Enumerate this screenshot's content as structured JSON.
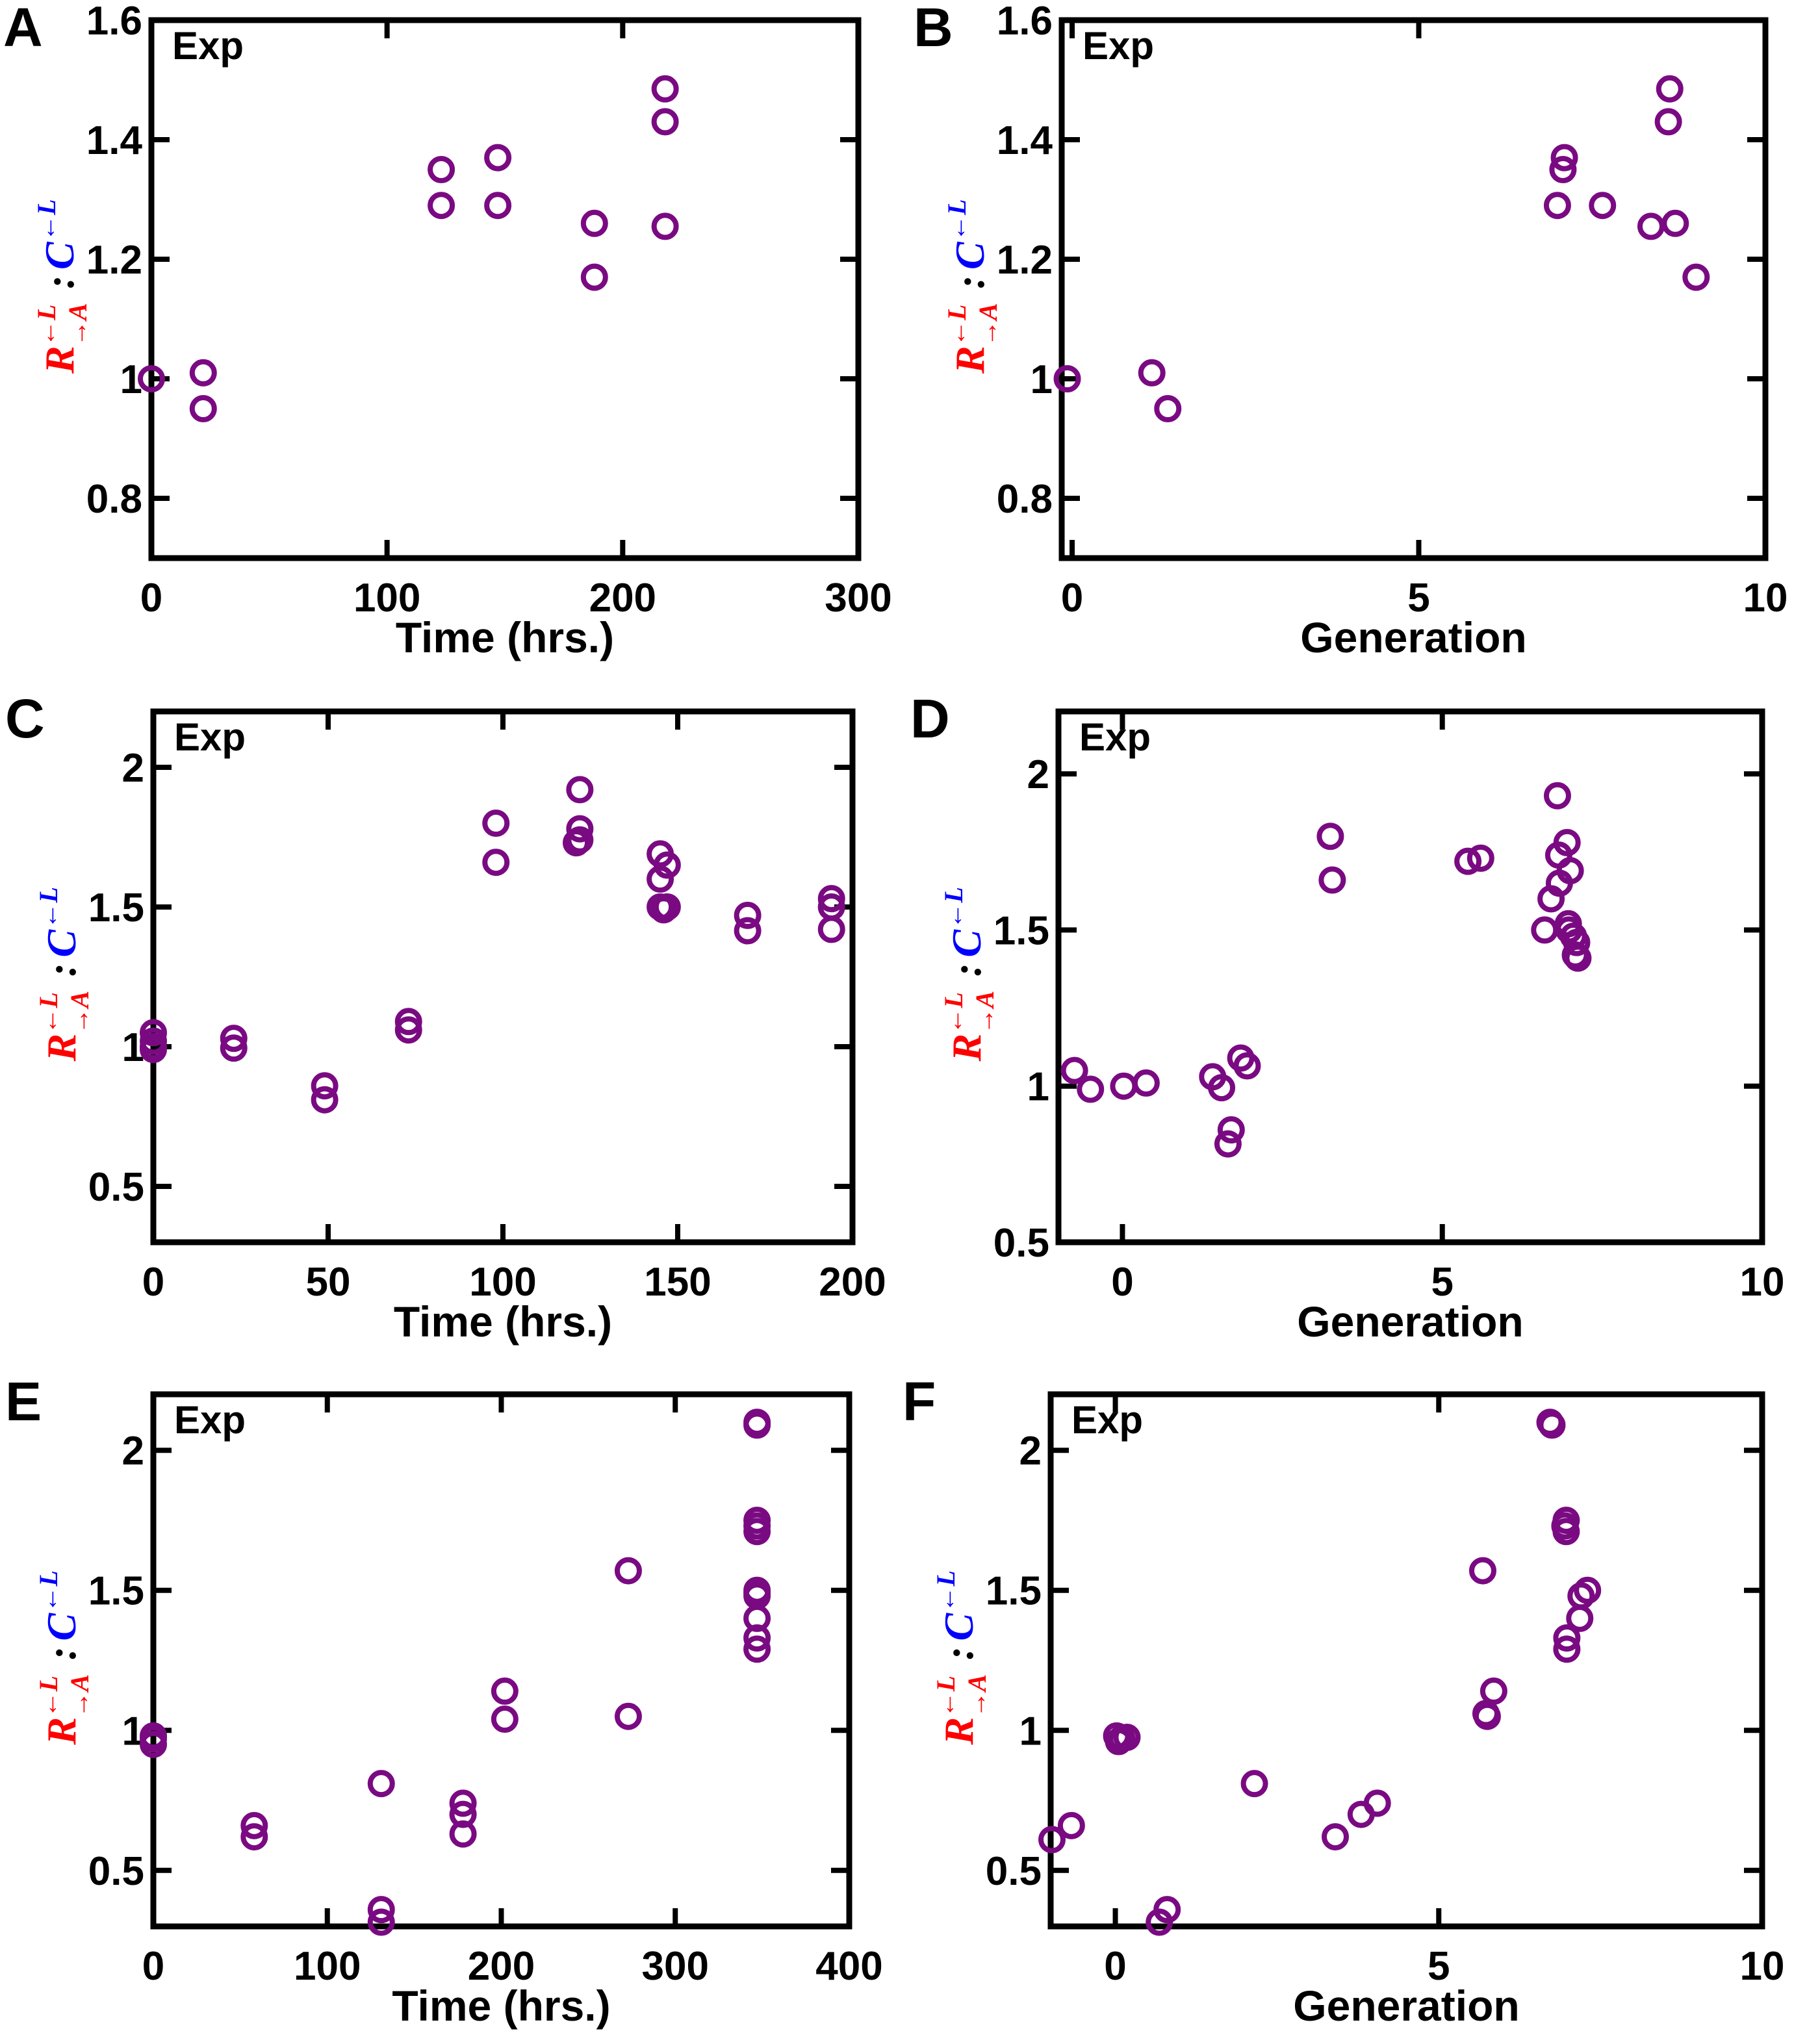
{
  "figure": {
    "marker_color": "#7a0a82",
    "ylabel": {
      "r_text": "R",
      "r_sup": "←L",
      "r_sub": "→A",
      "separator": ":",
      "c_text": "C",
      "c_sup": "←L",
      "r_color": "#ff0000",
      "c_color": "#0000ff",
      "sep_color": "#000000"
    }
  },
  "chart_data": [
    {
      "panel": "A",
      "type": "scatter",
      "annotation": "Exp",
      "xlabel": "Time (hrs.)",
      "ylabel": "R(←L)(→A) : C(←L)",
      "xlim": [
        0,
        300
      ],
      "ylim": [
        0.7,
        1.6
      ],
      "xticks": [
        0,
        100,
        200,
        300
      ],
      "xtick_labels": [
        "0",
        "100",
        "200",
        "300"
      ],
      "yticks": [
        0.8,
        1.0,
        1.2,
        1.4,
        1.6
      ],
      "ytick_labels": [
        "0.8",
        "1",
        "1.2",
        "1.4",
        "1.6"
      ],
      "grid": false,
      "marker": "open-circle",
      "points": [
        [
          0,
          1.0
        ],
        [
          22,
          1.01
        ],
        [
          22,
          0.95
        ],
        [
          123,
          1.35
        ],
        [
          123,
          1.29
        ],
        [
          147,
          1.37
        ],
        [
          147,
          1.29
        ],
        [
          188,
          1.26
        ],
        [
          188,
          1.17
        ],
        [
          218,
          1.485
        ],
        [
          218,
          1.43
        ],
        [
          218,
          1.255
        ]
      ]
    },
    {
      "panel": "B",
      "type": "scatter",
      "annotation": "Exp",
      "xlabel": "Generation",
      "ylabel": "R(←L)(→A) : C(←L)",
      "xlim": [
        -0.15,
        10
      ],
      "ylim": [
        0.7,
        1.6
      ],
      "xticks": [
        0,
        5,
        10
      ],
      "xtick_labels": [
        "0",
        "5",
        "10"
      ],
      "yticks": [
        0.8,
        1.0,
        1.2,
        1.4,
        1.6
      ],
      "ytick_labels": [
        "0.8",
        "1",
        "1.2",
        "1.4",
        "1.6"
      ],
      "grid": false,
      "marker": "open-circle",
      "points": [
        [
          -0.07,
          1.0
        ],
        [
          1.15,
          1.01
        ],
        [
          1.38,
          0.95
        ],
        [
          7.0,
          1.29
        ],
        [
          7.1,
          1.37
        ],
        [
          7.08,
          1.35
        ],
        [
          7.65,
          1.29
        ],
        [
          8.35,
          1.255
        ],
        [
          8.7,
          1.26
        ],
        [
          8.6,
          1.43
        ],
        [
          8.62,
          1.485
        ],
        [
          9.0,
          1.17
        ]
      ]
    },
    {
      "panel": "C",
      "type": "scatter",
      "annotation": "Exp",
      "xlabel": "Time (hrs.)",
      "ylabel": "R(←L)(→A) : C(←L)",
      "xlim": [
        0,
        200
      ],
      "ylim": [
        0.3,
        2.2
      ],
      "xticks": [
        0,
        50,
        100,
        150,
        200
      ],
      "xtick_labels": [
        "0",
        "50",
        "100",
        "150",
        "200"
      ],
      "yticks": [
        0.5,
        1.0,
        1.5,
        2.0
      ],
      "ytick_labels": [
        "0.5",
        "1",
        "1.5",
        "2"
      ],
      "grid": false,
      "marker": "open-circle",
      "points": [
        [
          0,
          1.05
        ],
        [
          0,
          1.02
        ],
        [
          0,
          1.0
        ],
        [
          0,
          0.99
        ],
        [
          23,
          1.03
        ],
        [
          23,
          0.995
        ],
        [
          49,
          0.86
        ],
        [
          49,
          0.81
        ],
        [
          73,
          1.09
        ],
        [
          73,
          1.06
        ],
        [
          98,
          1.8
        ],
        [
          98,
          1.66
        ],
        [
          122,
          1.92
        ],
        [
          122,
          1.78
        ],
        [
          122,
          1.74
        ],
        [
          121,
          1.73
        ],
        [
          145,
          1.69
        ],
        [
          145,
          1.6
        ],
        [
          145,
          1.5
        ],
        [
          146,
          1.49
        ],
        [
          147,
          1.65
        ],
        [
          147,
          1.5
        ],
        [
          170,
          1.47
        ],
        [
          170,
          1.415
        ],
        [
          194,
          1.53
        ],
        [
          194,
          1.5
        ],
        [
          194,
          1.42
        ]
      ]
    },
    {
      "panel": "D",
      "type": "scatter",
      "annotation": "Exp",
      "xlabel": "Generation",
      "ylabel": "R(←L)(→A) : C(←L)",
      "xlim": [
        -1,
        10
      ],
      "ylim": [
        0.5,
        2.2
      ],
      "xticks": [
        0,
        5,
        10
      ],
      "xtick_labels": [
        "0",
        "5",
        "10"
      ],
      "yticks": [
        0.5,
        1.0,
        1.5,
        2.0
      ],
      "ytick_labels": [
        "0.5",
        "1",
        "1.5",
        "2"
      ],
      "grid": false,
      "marker": "open-circle",
      "points": [
        [
          -0.75,
          1.05
        ],
        [
          -0.5,
          0.99
        ],
        [
          0.02,
          1.0
        ],
        [
          0.37,
          1.01
        ],
        [
          1.41,
          1.03
        ],
        [
          1.55,
          0.995
        ],
        [
          1.85,
          1.09
        ],
        [
          1.95,
          1.065
        ],
        [
          1.7,
          0.86
        ],
        [
          1.65,
          0.815
        ],
        [
          3.25,
          1.8
        ],
        [
          3.28,
          1.66
        ],
        [
          5.4,
          1.72
        ],
        [
          5.6,
          1.73
        ],
        [
          6.8,
          1.93
        ],
        [
          6.95,
          1.78
        ],
        [
          6.82,
          1.74
        ],
        [
          7.0,
          1.69
        ],
        [
          6.83,
          1.65
        ],
        [
          6.7,
          1.6
        ],
        [
          6.6,
          1.5
        ],
        [
          6.97,
          1.52
        ],
        [
          6.98,
          1.5
        ],
        [
          7.05,
          1.48
        ],
        [
          7.1,
          1.46
        ],
        [
          7.08,
          1.42
        ],
        [
          7.12,
          1.41
        ]
      ]
    },
    {
      "panel": "E",
      "type": "scatter",
      "annotation": "Exp",
      "xlabel": "Time (hrs.)",
      "ylabel": "R(←L)(→A) : C(←L)",
      "xlim": [
        0,
        400
      ],
      "ylim": [
        0.3,
        2.2
      ],
      "xticks": [
        0,
        100,
        200,
        300,
        400
      ],
      "xtick_labels": [
        "0",
        "100",
        "200",
        "300",
        "400"
      ],
      "yticks": [
        0.5,
        1.0,
        1.5,
        2.0
      ],
      "ytick_labels": [
        "0.5",
        "1",
        "1.5",
        "2"
      ],
      "grid": false,
      "marker": "open-circle",
      "points": [
        [
          0,
          0.98
        ],
        [
          0,
          0.97
        ],
        [
          0,
          0.95
        ],
        [
          58,
          0.66
        ],
        [
          58,
          0.62
        ],
        [
          131,
          0.81
        ],
        [
          131,
          0.36
        ],
        [
          131,
          0.315
        ],
        [
          178,
          0.74
        ],
        [
          178,
          0.7
        ],
        [
          178,
          0.63
        ],
        [
          202,
          1.14
        ],
        [
          202,
          1.04
        ],
        [
          273,
          1.57
        ],
        [
          273,
          1.05
        ],
        [
          347,
          2.1
        ],
        [
          347,
          2.09
        ],
        [
          347,
          1.75
        ],
        [
          347,
          1.73
        ],
        [
          347,
          1.71
        ],
        [
          347,
          1.5
        ],
        [
          347,
          1.49
        ],
        [
          347,
          1.48
        ],
        [
          347,
          1.4
        ],
        [
          347,
          1.33
        ],
        [
          347,
          1.29
        ]
      ]
    },
    {
      "panel": "F",
      "type": "scatter",
      "annotation": "Exp",
      "xlabel": "Generation",
      "ylabel": "R(←L)(→A) : C(←L)",
      "xlim": [
        -1,
        10
      ],
      "ylim": [
        0.3,
        2.2
      ],
      "xticks": [
        0,
        5,
        10
      ],
      "xtick_labels": [
        "0",
        "5",
        "10"
      ],
      "yticks": [
        0.5,
        1.0,
        1.5,
        2.0
      ],
      "ytick_labels": [
        "0.5",
        "1",
        "1.5",
        "2"
      ],
      "grid": false,
      "marker": "open-circle",
      "points": [
        [
          -0.98,
          0.61
        ],
        [
          -0.68,
          0.66
        ],
        [
          0.02,
          0.98
        ],
        [
          0.05,
          0.96
        ],
        [
          0.1,
          0.97
        ],
        [
          0.18,
          0.975
        ],
        [
          0.68,
          0.315
        ],
        [
          0.8,
          0.36
        ],
        [
          2.15,
          0.81
        ],
        [
          3.4,
          0.62
        ],
        [
          3.8,
          0.7
        ],
        [
          4.05,
          0.74
        ],
        [
          5.68,
          1.57
        ],
        [
          5.85,
          1.14
        ],
        [
          5.75,
          1.05
        ],
        [
          5.73,
          1.06
        ],
        [
          6.72,
          2.1
        ],
        [
          6.75,
          2.09
        ],
        [
          6.97,
          1.75
        ],
        [
          6.95,
          1.73
        ],
        [
          6.97,
          1.71
        ],
        [
          7.3,
          1.5
        ],
        [
          7.2,
          1.48
        ],
        [
          7.18,
          1.4
        ],
        [
          6.98,
          1.33
        ],
        [
          6.98,
          1.29
        ]
      ]
    }
  ]
}
